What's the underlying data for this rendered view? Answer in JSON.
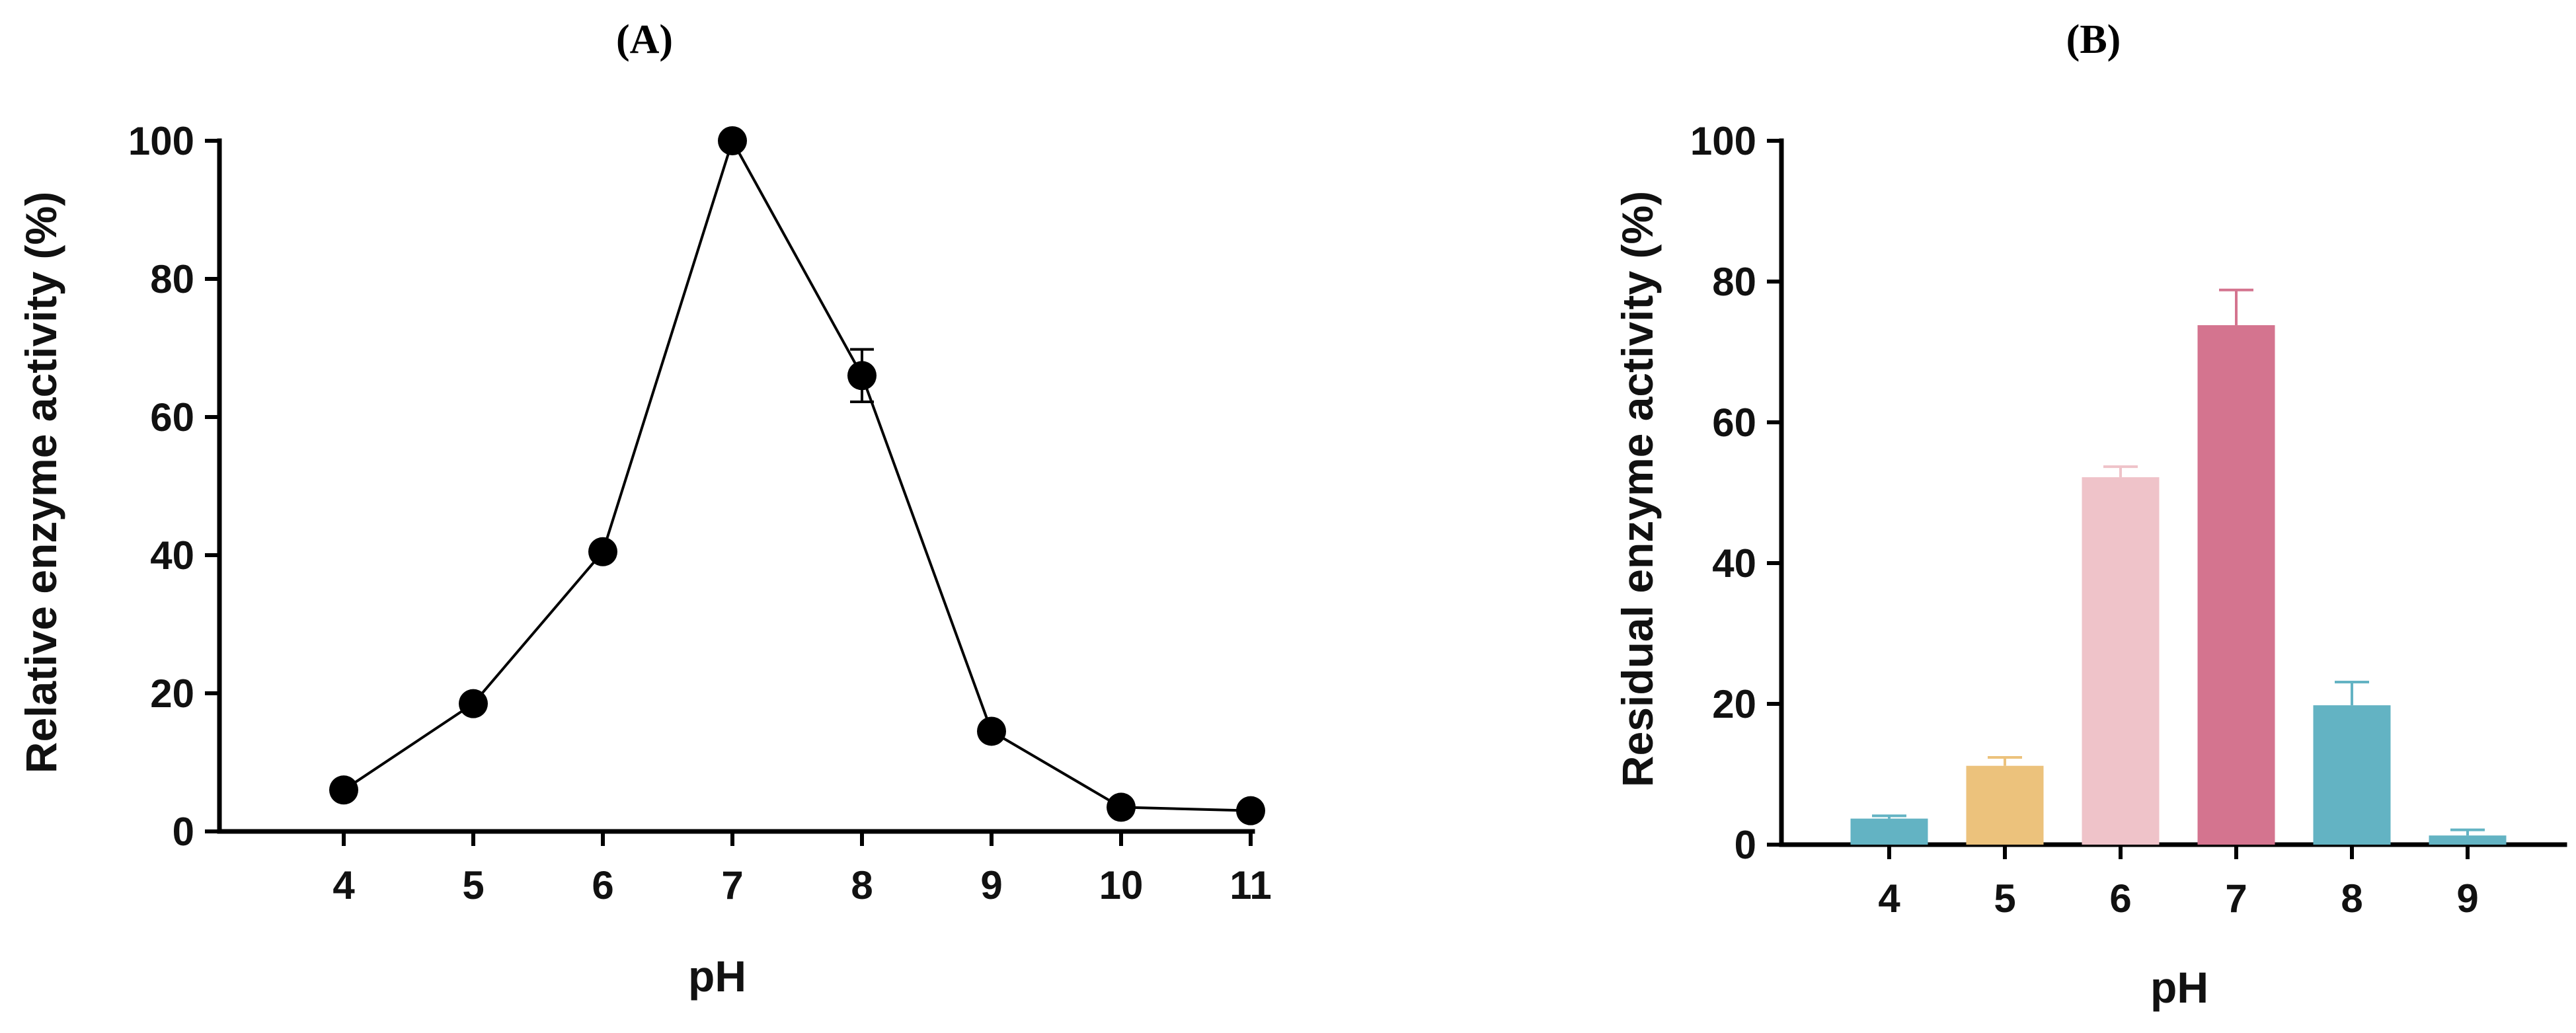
{
  "chart_data": [
    {
      "panel": "(A)",
      "type": "line",
      "xlabel": "pH",
      "ylabel": "Relative enzyme activity (%)",
      "x": [
        4,
        5,
        6,
        7,
        8,
        9,
        10,
        11
      ],
      "y": [
        6,
        18.5,
        40.5,
        100,
        66,
        14.5,
        3.5,
        3
      ],
      "error": [
        0,
        0,
        0,
        0,
        3.8,
        0,
        0,
        0
      ],
      "xlim": [
        3,
        11
      ],
      "ylim": [
        0,
        100
      ],
      "xticks": [
        "4",
        "5",
        "6",
        "7",
        "8",
        "9",
        "10",
        "11"
      ],
      "yticks": [
        "0",
        "20",
        "40",
        "60",
        "80",
        "100"
      ],
      "grid": false
    },
    {
      "panel": "(B)",
      "type": "bar",
      "xlabel": "pH",
      "ylabel": "Residual enzyme activity (%)",
      "categories": [
        "4",
        "5",
        "6",
        "7",
        "8",
        "9"
      ],
      "values": [
        3.7,
        11.2,
        52.2,
        73.8,
        19.8,
        1.3
      ],
      "error": [
        0.4,
        1.2,
        1.5,
        5,
        3.3,
        0.8
      ],
      "colors": [
        "#63b3c3",
        "#ecc27c",
        "#efc3c9",
        "#d4748f",
        "#63b3c3",
        "#63b3c3"
      ],
      "ylim": [
        0,
        100
      ],
      "yticks": [
        "0",
        "20",
        "40",
        "60",
        "80",
        "100"
      ],
      "grid": false
    }
  ]
}
